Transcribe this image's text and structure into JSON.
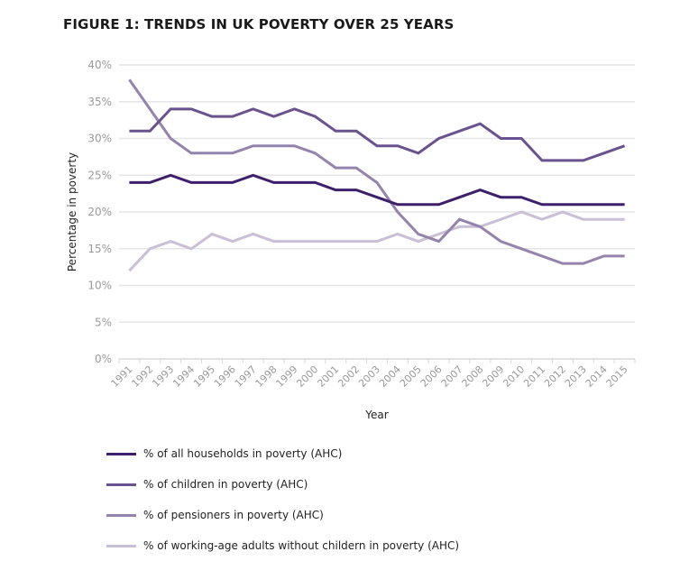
{
  "title": "FIGURE 1: TRENDS IN UK POVERTY OVER 25 YEARS",
  "chart_data": {
    "type": "line",
    "title": "FIGURE 1: TRENDS IN UK POVERTY OVER 25 YEARS",
    "xlabel": "Year",
    "ylabel": "Percentage in poverty",
    "ylim": [
      0,
      40
    ],
    "yticks": [
      "0%",
      "5%",
      "10%",
      "15%",
      "20%",
      "25%",
      "30%",
      "35%",
      "40%"
    ],
    "ytick_values": [
      0,
      5,
      10,
      15,
      20,
      25,
      30,
      35,
      40
    ],
    "grid": true,
    "legend_position": "bottom",
    "x": [
      "1991",
      "1992",
      "1993",
      "1994",
      "1995",
      "1996",
      "1997",
      "1998",
      "1999",
      "2000",
      "2001",
      "2002",
      "2003",
      "2004",
      "2005",
      "2006",
      "2007",
      "2008",
      "2009",
      "2010",
      "2011",
      "2012",
      "2013",
      "2014",
      "2015"
    ],
    "series": [
      {
        "name": "% of all households in poverty (AHC)",
        "color": "#3d1f6b",
        "values": [
          24,
          24,
          25,
          24,
          24,
          24,
          25,
          24,
          24,
          24,
          23,
          23,
          22,
          21,
          21,
          21,
          22,
          23,
          22,
          22,
          21,
          21,
          21,
          21,
          21
        ]
      },
      {
        "name": "% of children in poverty (AHC)",
        "color": "#6a528f",
        "values": [
          31,
          31,
          34,
          34,
          33,
          33,
          34,
          33,
          34,
          33,
          31,
          31,
          29,
          29,
          28,
          30,
          31,
          32,
          30,
          30,
          27,
          27,
          27,
          28,
          29
        ]
      },
      {
        "name": "% of pensioners in poverty (AHC)",
        "color": "#9483ad",
        "values": [
          38,
          34,
          30,
          28,
          28,
          28,
          29,
          29,
          29,
          28,
          26,
          26,
          24,
          20,
          17,
          16,
          19,
          18,
          16,
          15,
          14,
          13,
          13,
          14,
          14
        ]
      },
      {
        "name": "% of working-age adults without childern in poverty (AHC)",
        "color": "#c9bfd6",
        "values": [
          12,
          15,
          16,
          15,
          17,
          16,
          17,
          16,
          16,
          16,
          16,
          16,
          16,
          17,
          16,
          17,
          18,
          18,
          19,
          20,
          19,
          20,
          19,
          19,
          19
        ]
      }
    ]
  }
}
